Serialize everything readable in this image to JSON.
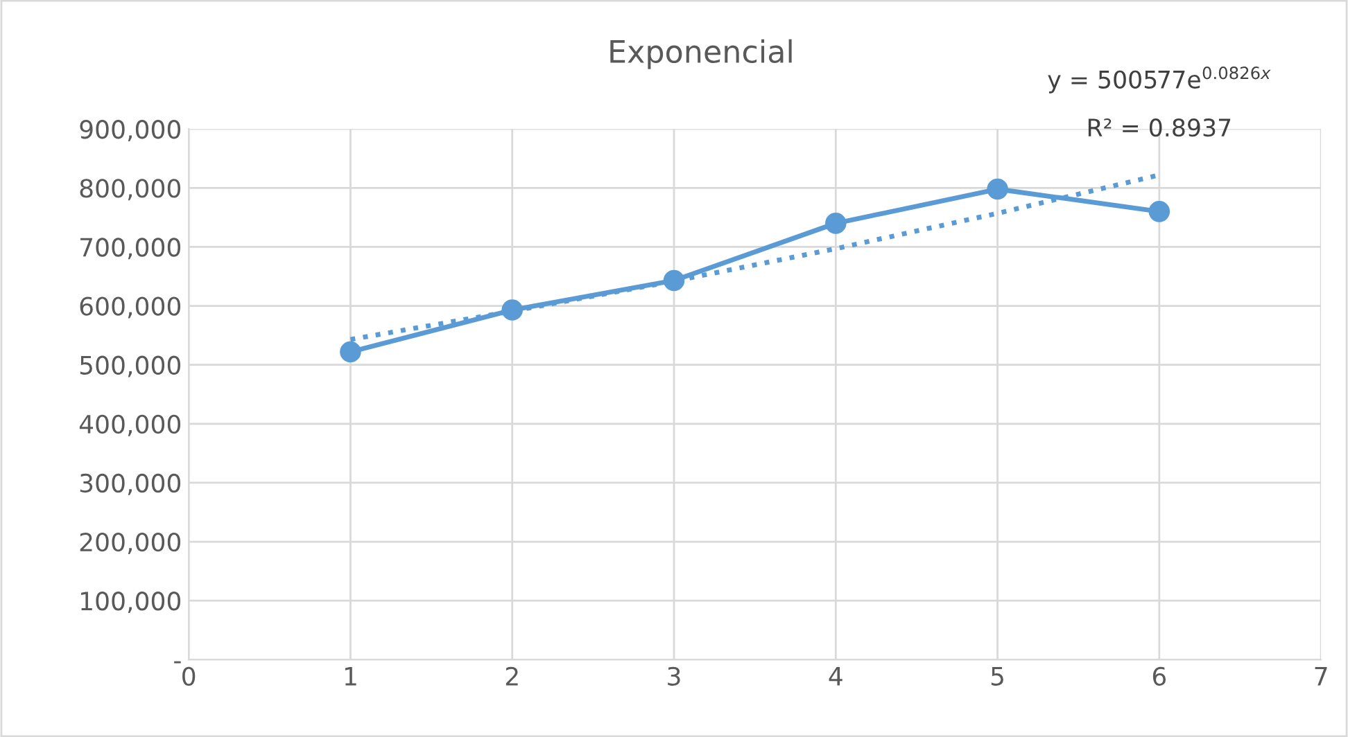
{
  "chart_data": {
    "type": "line",
    "title": "Exponencial",
    "x": [
      1,
      2,
      3,
      4,
      5,
      6
    ],
    "series": [
      {
        "color": "#5b9bd5",
        "values": [
          522000,
          593000,
          643000,
          740000,
          798000,
          760000
        ],
        "marker": "circle",
        "line_style": "solid"
      },
      {
        "type": "line",
        "x": [
          1,
          2,
          3,
          4,
          5,
          6
        ],
        "color": "#5b9bd5",
        "values": [
          543000,
          591000,
          642000,
          697000,
          757000,
          822000
        ],
        "marker": "none",
        "line_style": "dotted"
      }
    ],
    "xlim": [
      0,
      7
    ],
    "xticks": [
      0,
      1,
      2,
      3,
      4,
      5,
      6,
      7
    ],
    "ylim": [
      0,
      900000
    ],
    "yticks": [
      {
        "value": 0,
        "label": "-"
      },
      {
        "value": 100000,
        "label": "100,000"
      },
      {
        "value": 200000,
        "label": "200,000"
      },
      {
        "value": 300000,
        "label": "300,000"
      },
      {
        "value": 400000,
        "label": "400,000"
      },
      {
        "value": 500000,
        "label": "500,000"
      },
      {
        "value": 600000,
        "label": "600,000"
      },
      {
        "value": 700000,
        "label": "700,000"
      },
      {
        "value": 800000,
        "label": "800,000"
      },
      {
        "value": 900000,
        "label": "900,000"
      }
    ],
    "grid": true,
    "annotations": [
      "y = 500577e$^{0.0826x}$",
      "R² = 0.8937"
    ]
  }
}
